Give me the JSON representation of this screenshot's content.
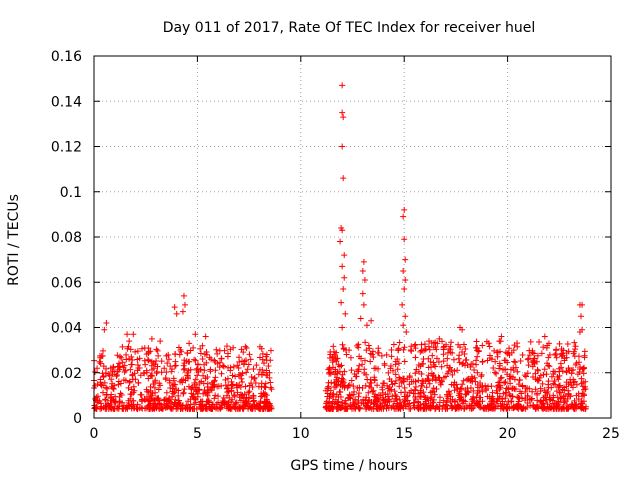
{
  "chart_data": {
    "type": "scatter",
    "title": "Day 011 of 2017, Rate Of TEC Index for receiver huel",
    "xlabel": "GPS time / hours",
    "ylabel": "ROTI / TECUs",
    "xlim": [
      0,
      25
    ],
    "ylim": [
      0,
      0.16
    ],
    "x_ticks": [
      0,
      5,
      10,
      15,
      20,
      25
    ],
    "x_tick_labels": [
      "0",
      "5",
      "10",
      "15",
      "20",
      "25"
    ],
    "y_ticks": [
      0,
      0.02,
      0.04,
      0.06,
      0.08,
      0.1,
      0.12,
      0.14,
      0.16
    ],
    "y_tick_labels": [
      "0",
      "0.02",
      "0.04",
      "0.06",
      "0.08",
      "0.1",
      "0.12",
      "0.14",
      "0.16"
    ],
    "grid": true,
    "marker": "+",
    "marker_color": "#ff0000",
    "data_gap_hours": [
      8.6,
      11.2
    ],
    "series": [
      {
        "name": "ROTI",
        "points": [
          [
            12.0,
            0.147
          ],
          [
            12.0,
            0.135
          ],
          [
            12.05,
            0.133
          ],
          [
            12.0,
            0.12
          ],
          [
            12.05,
            0.106
          ],
          [
            11.95,
            0.084
          ],
          [
            12.0,
            0.083
          ],
          [
            11.9,
            0.078
          ],
          [
            12.1,
            0.072
          ],
          [
            12.0,
            0.067
          ],
          [
            12.1,
            0.062
          ],
          [
            12.05,
            0.057
          ],
          [
            11.95,
            0.051
          ],
          [
            12.15,
            0.046
          ],
          [
            12.0,
            0.04
          ],
          [
            13.05,
            0.069
          ],
          [
            13.0,
            0.065
          ],
          [
            13.1,
            0.061
          ],
          [
            13.0,
            0.055
          ],
          [
            13.05,
            0.05
          ],
          [
            12.9,
            0.044
          ],
          [
            13.2,
            0.041
          ],
          [
            13.4,
            0.043
          ],
          [
            15.0,
            0.092
          ],
          [
            14.95,
            0.089
          ],
          [
            15.0,
            0.079
          ],
          [
            15.05,
            0.07
          ],
          [
            14.95,
            0.065
          ],
          [
            15.05,
            0.061
          ],
          [
            15.0,
            0.057
          ],
          [
            14.9,
            0.05
          ],
          [
            15.05,
            0.045
          ],
          [
            14.95,
            0.041
          ],
          [
            15.1,
            0.038
          ],
          [
            0.6,
            0.042
          ],
          [
            0.5,
            0.039
          ],
          [
            1.6,
            0.037
          ],
          [
            1.9,
            0.037
          ],
          [
            1.7,
            0.034
          ],
          [
            3.9,
            0.049
          ],
          [
            4.0,
            0.046
          ],
          [
            4.35,
            0.054
          ],
          [
            4.4,
            0.05
          ],
          [
            4.3,
            0.047
          ],
          [
            4.9,
            0.037
          ],
          [
            4.6,
            0.033
          ],
          [
            5.4,
            0.036
          ],
          [
            2.8,
            0.035
          ],
          [
            3.2,
            0.034
          ],
          [
            23.5,
            0.05
          ],
          [
            23.6,
            0.05
          ],
          [
            23.55,
            0.045
          ],
          [
            23.6,
            0.039
          ],
          [
            23.5,
            0.038
          ],
          [
            17.7,
            0.04
          ],
          [
            17.8,
            0.039
          ],
          [
            19.7,
            0.036
          ],
          [
            19.6,
            0.034
          ],
          [
            21.8,
            0.036
          ],
          [
            22.0,
            0.033
          ],
          [
            16.6,
            0.033
          ],
          [
            16.0,
            0.03
          ],
          [
            16.7,
            0.035
          ],
          [
            18.5,
            0.031
          ],
          [
            20.3,
            0.03
          ],
          [
            21.9,
            0.031
          ],
          [
            16.2,
            0.034
          ]
        ]
      }
    ],
    "background_band": {
      "description": "dense cloud of ROTI samples",
      "segments": [
        {
          "x_range": [
            0,
            8.6
          ],
          "y_range": [
            0.004,
            0.032
          ]
        },
        {
          "x_range": [
            11.2,
            23.8
          ],
          "y_range": [
            0.004,
            0.034
          ]
        }
      ]
    }
  }
}
